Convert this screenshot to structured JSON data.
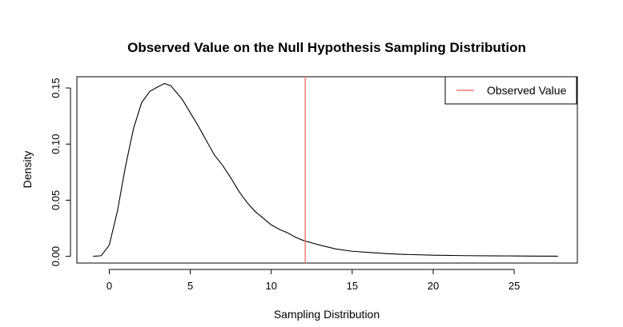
{
  "chart_data": {
    "type": "line",
    "title": "Observed Value on the Null Hypothesis Sampling Distribution",
    "xlabel": "Sampling Distribution",
    "ylabel": "Density",
    "xlim": [
      -2.0,
      28.9
    ],
    "ylim": [
      -0.006,
      0.16
    ],
    "x_ticks": [
      0,
      5,
      10,
      15,
      20,
      25
    ],
    "x_tick_labels": [
      "0",
      "5",
      "10",
      "15",
      "20",
      "25"
    ],
    "y_ticks": [
      0.0,
      0.05,
      0.1,
      0.15
    ],
    "y_tick_labels": [
      "0.00",
      "0.05",
      "0.10",
      "0.15"
    ],
    "grid": false,
    "legend": {
      "position": "top-right",
      "entries": [
        "Observed Value"
      ]
    },
    "series": [
      {
        "color": "#000000",
        "x": [
          -1.0,
          -0.5,
          0.0,
          0.5,
          1.0,
          1.5,
          2.0,
          2.5,
          3.0,
          3.4,
          3.8,
          4.5,
          5.0,
          5.5,
          6.0,
          6.5,
          7.0,
          7.5,
          8.0,
          8.5,
          9.0,
          9.5,
          10.0,
          10.5,
          11.0,
          11.5,
          12.0,
          12.5,
          13.0,
          14.0,
          15.0,
          16.0,
          17.0,
          18.0,
          20.0,
          22.0,
          24.0,
          26.0,
          27.7
        ],
        "y": [
          0.0,
          0.0005,
          0.01,
          0.04,
          0.08,
          0.114,
          0.137,
          0.147,
          0.151,
          0.154,
          0.152,
          0.14,
          0.128,
          0.116,
          0.103,
          0.09,
          0.081,
          0.07,
          0.058,
          0.048,
          0.04,
          0.034,
          0.028,
          0.024,
          0.021,
          0.017,
          0.014,
          0.012,
          0.01,
          0.0065,
          0.0045,
          0.0035,
          0.0025,
          0.0018,
          0.001,
          0.0006,
          0.0004,
          0.0002,
          0.0001
        ]
      }
    ],
    "observed_value": {
      "label": "Observed Value",
      "x": 12.1,
      "color": "#f4766c"
    }
  }
}
